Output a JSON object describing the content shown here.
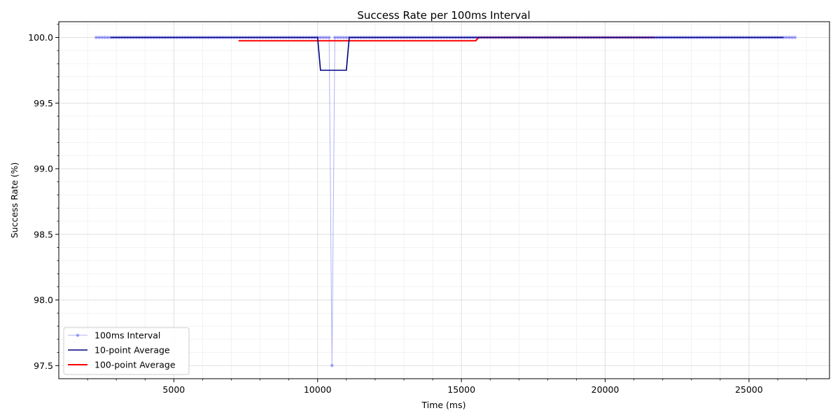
{
  "chart_data": {
    "type": "line",
    "title": "Success Rate per 100ms Interval",
    "xlabel": "Time (ms)",
    "ylabel": "Success Rate (%)",
    "xlim": [
      1000,
      27800
    ],
    "ylim": [
      97.4,
      100.12
    ],
    "x_ticks": [
      5000,
      10000,
      15000,
      20000,
      25000
    ],
    "y_ticks": [
      97.5,
      98.0,
      98.5,
      99.0,
      99.5,
      100.0
    ],
    "grid": true,
    "legend_position": "lower-left",
    "colors": {
      "interval": "#5555ee",
      "avg10": "#000080",
      "avg100": "#ff0000"
    },
    "series": [
      {
        "name": "100ms Interval",
        "style": "line-with-markers",
        "x_range": [
          2300,
          26600
        ],
        "step": 100,
        "default": 100.0,
        "exceptions": [
          {
            "x": 10500,
            "y": 97.5
          }
        ]
      },
      {
        "name": "10-point Average",
        "style": "line",
        "x": [
          2800,
          10000,
          10100,
          11000,
          11100,
          26200
        ],
        "y": [
          100.0,
          100.0,
          99.75,
          99.75,
          100.0,
          100.0
        ]
      },
      {
        "name": "100-point Average",
        "style": "line",
        "x": [
          7250,
          15500,
          15600,
          21700
        ],
        "y": [
          99.975,
          99.975,
          100.0,
          100.0
        ]
      }
    ]
  }
}
